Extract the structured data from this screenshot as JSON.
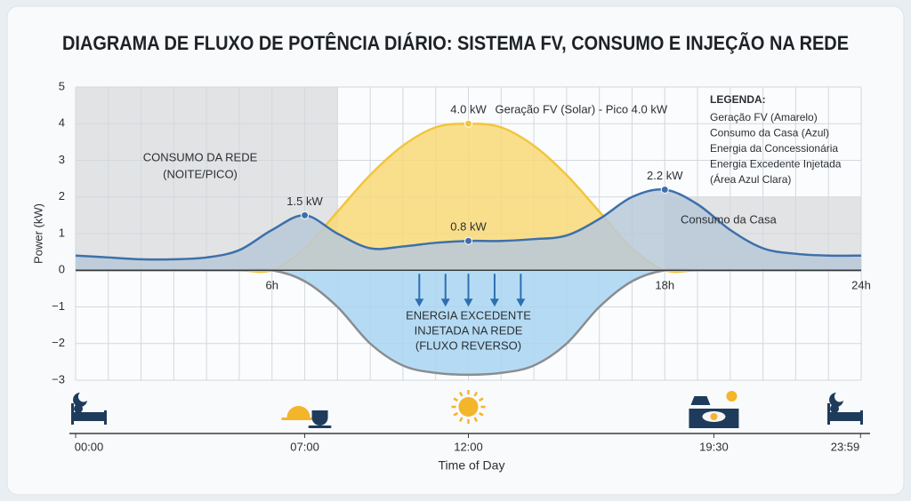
{
  "chart_data": {
    "type": "area",
    "title": "DIAGRAMA DE FLUXO DE POTÊNCIA DIÁRIO: SISTEMA FV, CONSUMO E INJEÇÃO NA REDE",
    "ylabel": "Power (kW)",
    "xlabel": "Time of Day",
    "x": [
      0,
      1,
      2,
      3,
      4,
      5,
      6,
      7,
      8,
      9,
      10,
      11,
      12,
      13,
      14,
      15,
      16,
      17,
      18,
      19,
      20,
      21,
      22,
      23,
      24
    ],
    "xlim": [
      0,
      24
    ],
    "ylim": [
      -3,
      5
    ],
    "yticks": [
      {
        "value": -3,
        "label": "−3"
      },
      {
        "value": -2,
        "label": "−2"
      },
      {
        "value": -1,
        "label": "−1"
      },
      0,
      1,
      2,
      3,
      4,
      5
    ],
    "xticks": [
      {
        "value": 0,
        "label": "00:00"
      },
      {
        "value": 7,
        "label": "07:00"
      },
      {
        "value": 12,
        "label": "12:00"
      },
      {
        "value": 19.5,
        "label": "19:30"
      },
      {
        "value": 23.98,
        "label": "23:59"
      }
    ],
    "zero_line_ticks": [
      {
        "value": 6,
        "label": "6h"
      },
      {
        "value": 18,
        "label": "18h"
      },
      {
        "value": 24,
        "label": "24h"
      }
    ],
    "grid": true,
    "shaded_regions": [
      {
        "x": [
          0,
          8
        ],
        "y": [
          0,
          5
        ],
        "color": "#e2e3e5"
      },
      {
        "x": [
          18,
          24
        ],
        "y": [
          0,
          2
        ],
        "color": "#e2e3e5"
      }
    ],
    "series": [
      {
        "color": "#f2c53d",
        "fill": "#f8d977",
        "values": [
          0,
          0,
          0,
          0,
          0,
          0,
          0,
          0.6,
          1.6,
          2.6,
          3.4,
          3.9,
          4.0,
          3.9,
          3.4,
          2.6,
          1.6,
          0.6,
          0,
          0,
          0,
          0,
          0,
          0,
          0
        ],
        "value_labels": [
          null,
          null,
          null,
          null,
          null,
          null,
          null,
          null,
          null,
          null,
          null,
          null,
          "4.0 kW",
          null,
          null,
          null,
          null,
          null,
          null,
          null,
          null,
          null,
          null,
          null,
          null
        ]
      },
      {
        "color": "#8a8d91",
        "fill": "#a8d5f2",
        "values": [
          0,
          0,
          0,
          0,
          0,
          0,
          0,
          -0.3,
          -1.0,
          -2.0,
          -2.6,
          -2.8,
          -2.85,
          -2.8,
          -2.6,
          -2.0,
          -1.0,
          -0.3,
          0,
          0,
          0,
          0,
          0,
          0,
          0
        ]
      },
      {
        "color": "#3d70aa",
        "fill": "#b9c9d9",
        "values": [
          0.4,
          0.35,
          0.3,
          0.3,
          0.35,
          0.55,
          1.1,
          1.5,
          1.0,
          0.6,
          0.65,
          0.75,
          0.8,
          0.8,
          0.85,
          0.95,
          1.4,
          2.0,
          2.2,
          1.8,
          1.1,
          0.6,
          0.45,
          0.4,
          0.4
        ],
        "value_labels": [
          null,
          null,
          null,
          null,
          null,
          null,
          null,
          "1.5 kW",
          null,
          null,
          null,
          null,
          "0.8 kW",
          null,
          null,
          null,
          null,
          null,
          "2.2 kW",
          null,
          null,
          null,
          null,
          null,
          null
        ]
      }
    ],
    "annotations": {
      "pv_label": "Geração FV (Solar) - Pico 4.0 kW",
      "grid_label": [
        "CONSUMO DA REDE",
        "(NOITE/PICO)"
      ],
      "consumption_label": "Consumo da Casa",
      "injection_label": [
        "ENERGIA EXCEDENTE",
        "INJETADA NA REDE",
        "(FLUXO REVERSO)"
      ]
    },
    "legend": {
      "title": "LEGENDA:",
      "items": [
        "Geração FV (Amarelo)",
        "Consumo da Casa (Azul)",
        "Energia da Concessionária",
        "Energia Excedente Injetada",
        "(Área Azul Clara)"
      ]
    }
  }
}
